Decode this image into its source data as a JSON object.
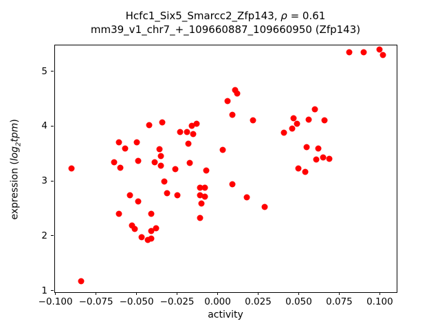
{
  "figure": {
    "title_line1_prefix": "Hcfc1_Six5_Smarcc2_Zfp143, ",
    "title_rho": "ρ",
    "title_line1_suffix": " = 0.61",
    "title_line2": "mm39_v1_chr7_+_109660887_109660950 (Zfp143)"
  },
  "ylabel_parts": {
    "prefix": "expression (",
    "log": "log",
    "sub": "2",
    "var": "tpm",
    "suffix": ")"
  },
  "chart_data": {
    "type": "scatter",
    "title": "Hcfc1_Six5_Smarcc2_Zfp143, ρ = 0.61",
    "subtitle": "mm39_v1_chr7_+_109660887_109660950 (Zfp143)",
    "rho": 0.61,
    "xlabel": "activity",
    "ylabel": "expression (log2tpm)",
    "marker_color": "#ff0000",
    "axis_color": "#000000",
    "grid": false,
    "legend": false,
    "xlim": [
      -0.1007,
      0.11
    ],
    "ylim": [
      0.984,
      5.483
    ],
    "x_ticks": [
      {
        "value": -0.1,
        "label": "−0.100"
      },
      {
        "value": -0.075,
        "label": "−0.075"
      },
      {
        "value": -0.05,
        "label": "−0.050"
      },
      {
        "value": -0.025,
        "label": "−0.025"
      },
      {
        "value": 0.0,
        "label": "0.000"
      },
      {
        "value": 0.025,
        "label": "0.025"
      },
      {
        "value": 0.05,
        "label": "0.050"
      },
      {
        "value": 0.075,
        "label": "0.075"
      },
      {
        "value": 0.1,
        "label": "0.100"
      }
    ],
    "y_ticks": [
      {
        "value": 1,
        "label": "1"
      },
      {
        "value": 2,
        "label": "2"
      },
      {
        "value": 3,
        "label": "3"
      },
      {
        "value": 4,
        "label": "4"
      },
      {
        "value": 5,
        "label": "5"
      }
    ],
    "points": [
      [
        0.081,
        5.34
      ],
      [
        0.09,
        5.35
      ],
      [
        0.1,
        5.39
      ],
      [
        0.102,
        5.3
      ],
      [
        0.011,
        4.65
      ],
      [
        0.012,
        4.59
      ],
      [
        0.006,
        4.45
      ],
      [
        0.009,
        4.2
      ],
      [
        0.022,
        4.1
      ],
      [
        0.06,
        4.3
      ],
      [
        0.047,
        4.14
      ],
      [
        0.056,
        4.12
      ],
      [
        0.066,
        4.1
      ],
      [
        0.049,
        4.04
      ],
      [
        0.046,
        3.95
      ],
      [
        0.041,
        3.88
      ],
      [
        0.055,
        3.62
      ],
      [
        0.062,
        3.59
      ],
      [
        0.061,
        3.39
      ],
      [
        0.065,
        3.43
      ],
      [
        0.069,
        3.4
      ],
      [
        0.05,
        3.23
      ],
      [
        0.054,
        3.16
      ],
      [
        -0.09,
        3.23
      ],
      [
        -0.061,
        3.7
      ],
      [
        -0.057,
        3.59
      ],
      [
        -0.064,
        3.34
      ],
      [
        -0.06,
        3.24
      ],
      [
        -0.05,
        3.7
      ],
      [
        -0.049,
        3.36
      ],
      [
        -0.042,
        4.02
      ],
      [
        -0.039,
        3.34
      ],
      [
        -0.034,
        4.07
      ],
      [
        -0.036,
        3.58
      ],
      [
        -0.035,
        3.45
      ],
      [
        -0.035,
        3.28
      ],
      [
        -0.054,
        2.74
      ],
      [
        -0.049,
        2.62
      ],
      [
        -0.061,
        2.4
      ],
      [
        -0.041,
        2.4
      ],
      [
        -0.053,
        2.19
      ],
      [
        -0.051,
        2.12
      ],
      [
        -0.038,
        2.14
      ],
      [
        -0.041,
        2.09
      ],
      [
        -0.047,
        1.98
      ],
      [
        -0.043,
        1.92
      ],
      [
        -0.041,
        1.95
      ],
      [
        -0.084,
        1.17
      ],
      [
        -0.033,
        2.99
      ],
      [
        -0.031,
        2.78
      ],
      [
        -0.025,
        2.74
      ],
      [
        -0.026,
        3.21
      ],
      [
        -0.007,
        3.19
      ],
      [
        -0.011,
        2.88
      ],
      [
        -0.008,
        2.88
      ],
      [
        -0.011,
        2.74
      ],
      [
        -0.008,
        2.71
      ],
      [
        -0.01,
        2.59
      ],
      [
        -0.011,
        2.32
      ],
      [
        0.003,
        3.57
      ],
      [
        0.009,
        2.94
      ],
      [
        0.018,
        2.7
      ],
      [
        0.029,
        2.52
      ],
      [
        -0.023,
        3.89
      ],
      [
        -0.019,
        3.89
      ],
      [
        -0.015,
        3.85
      ],
      [
        -0.016,
        4.01
      ],
      [
        -0.013,
        4.04
      ],
      [
        -0.018,
        3.68
      ],
      [
        -0.017,
        3.33
      ]
    ]
  }
}
